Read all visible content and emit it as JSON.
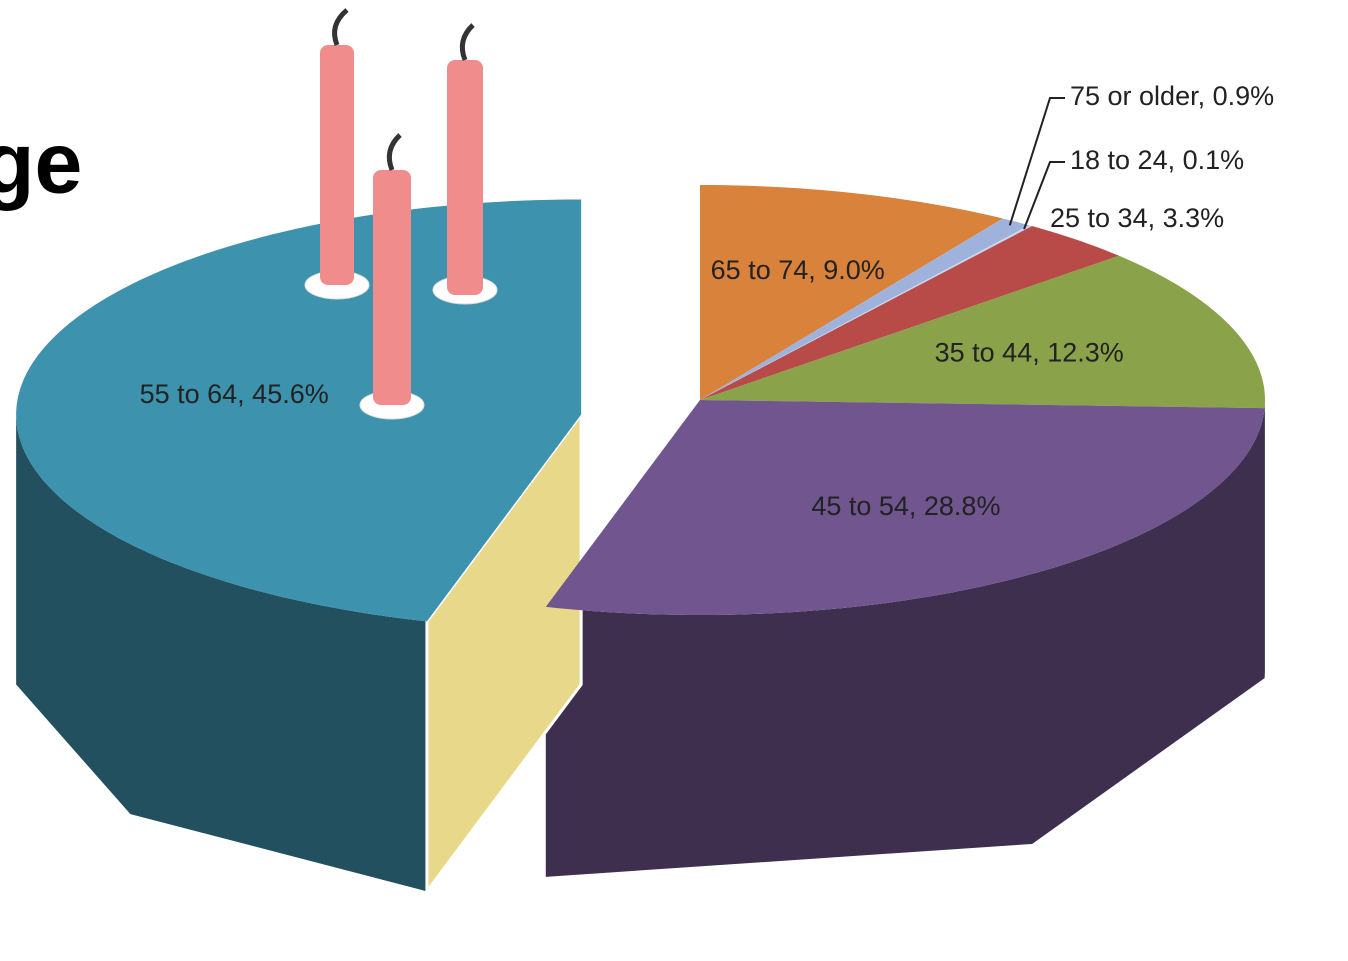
{
  "chart_data": {
    "type": "pie3d",
    "title": "ge",
    "value_labels": [
      "65 to 74, 9.0%",
      "75 or older, 0.9%",
      "18 to 24, 0.1%",
      "25 to 34, 3.3%",
      "35 to 44, 12.3%",
      "45 to 54, 28.8%",
      "55 to 64, 45.6%"
    ],
    "values": [
      9.0,
      0.9,
      0.1,
      3.3,
      12.3,
      28.8,
      45.6
    ],
    "colors": [
      "#d9823b",
      "#9fb2dc",
      "#c9d4ee",
      "#b84a48",
      "#8aa24a",
      "#70558f",
      "#3d92ad"
    ],
    "exploded": [
      6
    ]
  }
}
